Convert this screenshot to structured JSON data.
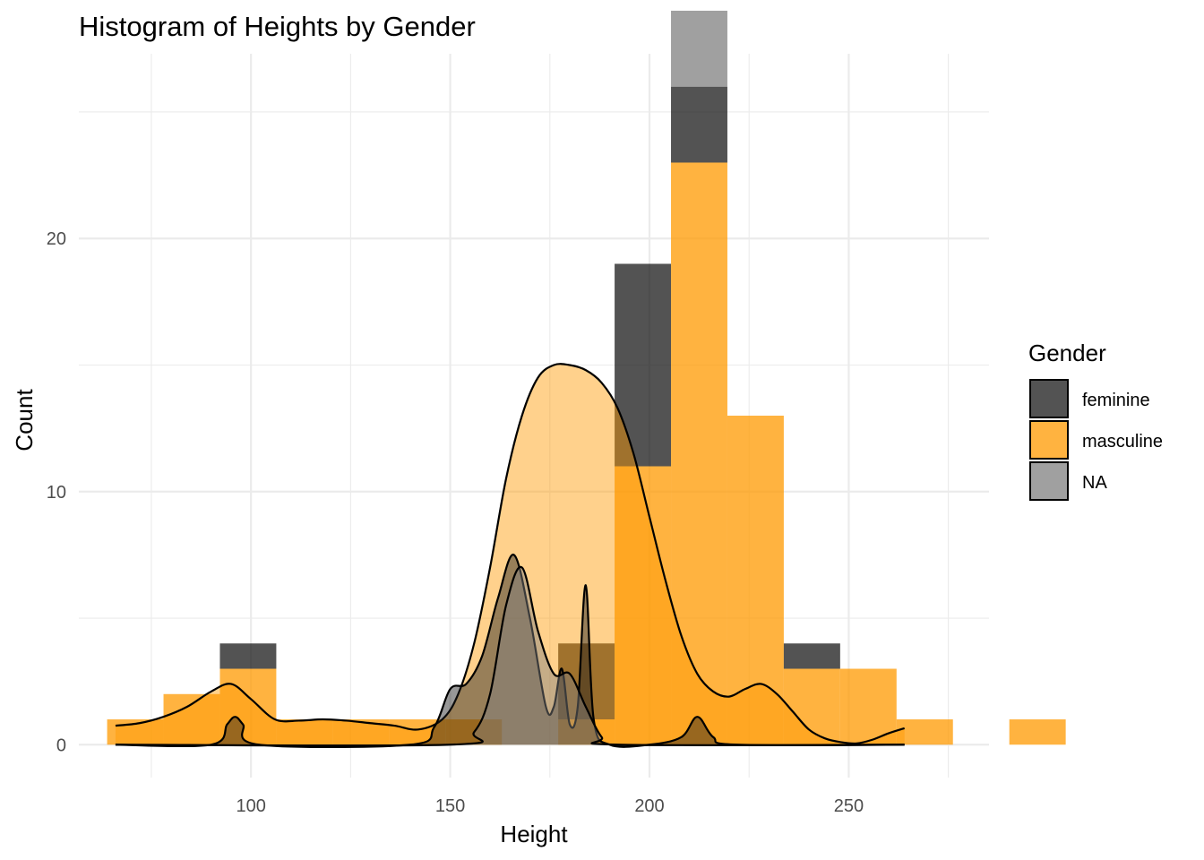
{
  "chart_data": {
    "type": "histogram",
    "title": "Histogram of Heights by Gender",
    "xlabel": "Height",
    "ylabel": "Count",
    "xlim": [
      56.8,
      285.2
    ],
    "ylim": [
      -1.3,
      27.3
    ],
    "x_ticks": [
      100,
      150,
      200,
      250
    ],
    "y_ticks": [
      0,
      10,
      20
    ],
    "x_tick_labels": [
      "100",
      "150",
      "200",
      "250"
    ],
    "y_tick_labels": [
      "0",
      "10",
      "20"
    ],
    "grid": true,
    "stacked": true,
    "bin_width": 14.15,
    "bin_start": 63.9,
    "legend": {
      "title": "Gender",
      "position": "right",
      "entries": [
        {
          "label": "feminine",
          "color": "#1a1a1a"
        },
        {
          "label": "masculine",
          "color": "#ff9900"
        },
        {
          "label": "NA",
          "color": "#808080"
        }
      ]
    },
    "series": [
      {
        "name": "masculine",
        "color": "#ff9900",
        "values": [
          1,
          2,
          3,
          1,
          1,
          1,
          1,
          0,
          1,
          11,
          23,
          13,
          3,
          3,
          1,
          0,
          1
        ]
      },
      {
        "name": "feminine",
        "color": "#1a1a1a",
        "values": [
          0,
          0,
          1,
          0,
          0,
          0,
          0,
          0,
          3,
          8,
          3,
          0,
          1,
          0,
          0,
          0,
          0
        ]
      },
      {
        "name": "NA",
        "color": "#808080",
        "values": [
          0,
          0,
          0,
          0,
          0,
          0,
          0,
          0,
          0,
          0,
          3,
          0,
          0,
          0,
          0,
          0,
          0
        ]
      }
    ],
    "density_curves": [
      {
        "name": "masculine",
        "x": [
          66,
          72,
          78,
          84,
          90,
          95,
          100,
          106,
          112,
          118,
          124,
          130,
          136,
          142,
          148,
          152,
          156,
          160,
          164,
          168,
          172,
          176,
          180,
          184,
          188,
          192,
          196,
          200,
          204,
          208,
          212,
          216,
          220,
          224,
          228,
          232,
          236,
          240,
          244,
          248,
          252,
          256,
          260,
          264
        ],
        "y": [
          0.75,
          0.85,
          1.1,
          1.5,
          2.1,
          2.4,
          1.8,
          1.0,
          0.95,
          1.0,
          0.95,
          0.85,
          0.75,
          0.6,
          1.0,
          2.0,
          4.0,
          7.0,
          10.5,
          13.0,
          14.5,
          15.0,
          15.0,
          14.8,
          14.3,
          13.3,
          11.5,
          9.0,
          6.5,
          4.3,
          2.8,
          2.1,
          1.9,
          2.2,
          2.4,
          2.0,
          1.3,
          0.6,
          0.25,
          0.1,
          0.05,
          0.2,
          0.45,
          0.65
        ]
      },
      {
        "name": "feminine",
        "x": [
          66,
          90,
          94,
          96,
          98,
          102,
          140,
          146,
          150,
          154,
          158,
          162,
          166,
          170,
          174,
          176,
          178,
          180,
          182,
          184,
          186,
          190,
          200,
          208,
          212,
          216,
          222,
          264
        ],
        "y": [
          0,
          0,
          0.8,
          1.1,
          0.8,
          0,
          0,
          0.7,
          2.2,
          2.4,
          3.5,
          5.8,
          7.5,
          5.0,
          1.5,
          1.5,
          3.0,
          0.8,
          1.5,
          6.3,
          1.0,
          0,
          0,
          0.3,
          1.1,
          0.3,
          0,
          0
        ]
      },
      {
        "name": "NA",
        "x": [
          66,
          150,
          156,
          160,
          164,
          168,
          172,
          176,
          180,
          184,
          188,
          192,
          264
        ],
        "y": [
          0,
          0,
          0.5,
          2.0,
          5.5,
          7.0,
          4.5,
          2.8,
          2.8,
          1.5,
          0.3,
          0,
          0
        ]
      }
    ]
  }
}
